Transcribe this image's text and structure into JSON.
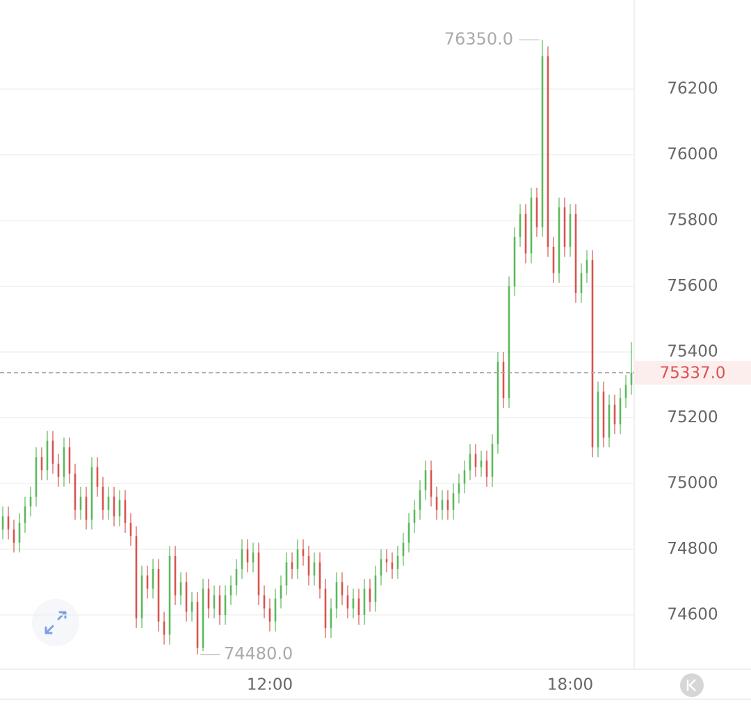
{
  "chart_data": {
    "type": "candlestick",
    "categories": [
      null,
      null,
      null,
      null,
      null,
      null,
      null,
      null,
      null,
      null,
      null,
      null,
      null,
      null,
      null,
      null,
      null,
      null,
      null,
      null,
      null,
      null,
      null,
      null,
      null,
      null,
      null,
      null,
      null,
      null,
      null,
      null,
      null,
      null,
      null,
      null,
      null,
      null,
      null,
      null,
      null,
      null,
      null,
      null,
      null,
      null,
      null,
      null,
      "12:00",
      null,
      null,
      null,
      null,
      null,
      null,
      null,
      null,
      null,
      null,
      null,
      null,
      null,
      null,
      null,
      null,
      null,
      null,
      null,
      null,
      null,
      null,
      null,
      null,
      null,
      null,
      null,
      null,
      null,
      null,
      null,
      null,
      null,
      null,
      null,
      null,
      null,
      null,
      null,
      null,
      null,
      null,
      null,
      null,
      null,
      null,
      null,
      null,
      null,
      null,
      null,
      null,
      null,
      "18:00",
      null,
      null,
      null,
      null,
      null,
      null,
      null,
      null,
      null,
      null,
      null
    ],
    "open": [
      74860,
      74900,
      74860,
      74820,
      74880,
      74930,
      74960,
      75080,
      75040,
      75130,
      75060,
      75020,
      75110,
      75030,
      74920,
      74960,
      74890,
      75050,
      74990,
      74920,
      74960,
      74900,
      74950,
      74880,
      74840,
      74590,
      74720,
      74680,
      74740,
      74580,
      74540,
      74780,
      74660,
      74700,
      74610,
      74640,
      74500,
      74680,
      74620,
      74660,
      74600,
      74660,
      74690,
      74740,
      74800,
      74760,
      74790,
      74660,
      74620,
      74580,
      74650,
      74690,
      74760,
      74740,
      74800,
      74780,
      74720,
      74760,
      74680,
      74560,
      74620,
      74700,
      74660,
      74620,
      74650,
      74600,
      74680,
      74640,
      74720,
      74770,
      74760,
      74740,
      74780,
      74820,
      74880,
      74920,
      74980,
      75040,
      74960,
      74920,
      74950,
      74920,
      74970,
      75000,
      75040,
      75090,
      75050,
      75070,
      75020,
      75120,
      75370,
      75260,
      75600,
      75750,
      75820,
      75700,
      75870,
      75780,
      76300,
      75720,
      75640,
      75840,
      75720,
      75820,
      75580,
      75640,
      75680,
      75110,
      75280,
      75140,
      75240,
      75180,
      75260,
      75300
    ],
    "high": [
      74930,
      74930,
      74890,
      74910,
      74960,
      74990,
      75110,
      75110,
      75160,
      75160,
      75090,
      75140,
      75140,
      75060,
      74990,
      74990,
      75080,
      75080,
      75020,
      74990,
      74990,
      74980,
      74980,
      74910,
      74870,
      74750,
      74750,
      74770,
      74770,
      74610,
      74810,
      74810,
      74730,
      74730,
      74670,
      74670,
      74710,
      74710,
      74690,
      74690,
      74690,
      74720,
      74770,
      74830,
      74830,
      74820,
      74820,
      74690,
      74650,
      74680,
      74720,
      74790,
      74790,
      74830,
      74830,
      74810,
      74790,
      74790,
      74710,
      74650,
      74730,
      74730,
      74690,
      74680,
      74680,
      74710,
      74710,
      74750,
      74800,
      74800,
      74790,
      74810,
      74850,
      74910,
      74950,
      75010,
      75070,
      75070,
      74990,
      74980,
      74980,
      75000,
      75030,
      75070,
      75120,
      75120,
      75100,
      75100,
      75150,
      75400,
      75400,
      75630,
      75780,
      75850,
      75850,
      75900,
      75900,
      76350,
      76330,
      75750,
      75870,
      75870,
      75850,
      75850,
      75670,
      75710,
      75710,
      75310,
      75310,
      75270,
      75270,
      75290,
      75330,
      75430
    ],
    "low": [
      74830,
      74830,
      74790,
      74790,
      74850,
      74900,
      74930,
      75010,
      75010,
      75030,
      74990,
      74990,
      75000,
      74890,
      74890,
      74860,
      74860,
      74960,
      74890,
      74890,
      74870,
      74870,
      74850,
      74810,
      74560,
      74560,
      74650,
      74650,
      74550,
      74510,
      74510,
      74630,
      74630,
      74580,
      74580,
      74480,
      74490,
      74590,
      74590,
      74570,
      74570,
      74630,
      74660,
      74710,
      74730,
      74730,
      74630,
      74590,
      74550,
      74550,
      74620,
      74660,
      74710,
      74710,
      74750,
      74690,
      74690,
      74650,
      74530,
      74530,
      74590,
      74630,
      74590,
      74590,
      74570,
      74570,
      74610,
      74610,
      74690,
      74730,
      74710,
      74710,
      74750,
      74790,
      74850,
      74890,
      74950,
      74930,
      74890,
      74890,
      74890,
      74890,
      74940,
      74970,
      75010,
      75020,
      75020,
      74990,
      74990,
      75090,
      75230,
      75230,
      75570,
      75720,
      75670,
      75670,
      75750,
      75750,
      75690,
      75610,
      75610,
      75690,
      75690,
      75550,
      75550,
      75610,
      75080,
      75080,
      75110,
      75110,
      75150,
      75150,
      75230,
      75270
    ],
    "close": [
      74900,
      74860,
      74820,
      74880,
      74930,
      74960,
      75080,
      75040,
      75130,
      75060,
      75020,
      75110,
      75030,
      74920,
      74960,
      74890,
      75050,
      74990,
      74920,
      74960,
      74900,
      74950,
      74880,
      74840,
      74590,
      74720,
      74680,
      74740,
      74580,
      74540,
      74780,
      74660,
      74700,
      74610,
      74640,
      74500,
      74680,
      74620,
      74660,
      74600,
      74660,
      74690,
      74740,
      74800,
      74760,
      74790,
      74660,
      74620,
      74580,
      74650,
      74690,
      74760,
      74740,
      74800,
      74780,
      74720,
      74760,
      74680,
      74560,
      74620,
      74700,
      74660,
      74620,
      74650,
      74600,
      74680,
      74640,
      74720,
      74770,
      74760,
      74740,
      74780,
      74820,
      74880,
      74920,
      74980,
      75040,
      74960,
      74920,
      74950,
      74920,
      74970,
      75000,
      75040,
      75090,
      75050,
      75070,
      75020,
      75120,
      75370,
      75260,
      75600,
      75750,
      75820,
      75700,
      75870,
      75780,
      76300,
      75720,
      75640,
      75840,
      75720,
      75820,
      75580,
      75640,
      75680,
      75110,
      75280,
      75140,
      75240,
      75180,
      75260,
      75300,
      75337
    ],
    "up_color": "#5cb85c",
    "down_color": "#d9534f",
    "ylim": [
      74435,
      76471
    ],
    "yticks": [
      74600,
      74800,
      75000,
      75200,
      75400,
      75600,
      75800,
      76000,
      76200
    ],
    "grid": true,
    "max_label": {
      "value": 76350,
      "label": "76350.0"
    },
    "min_label": {
      "value": 74480,
      "label": "74480.0"
    },
    "last_price": {
      "value": 75337,
      "label": "75337.0"
    }
  }
}
